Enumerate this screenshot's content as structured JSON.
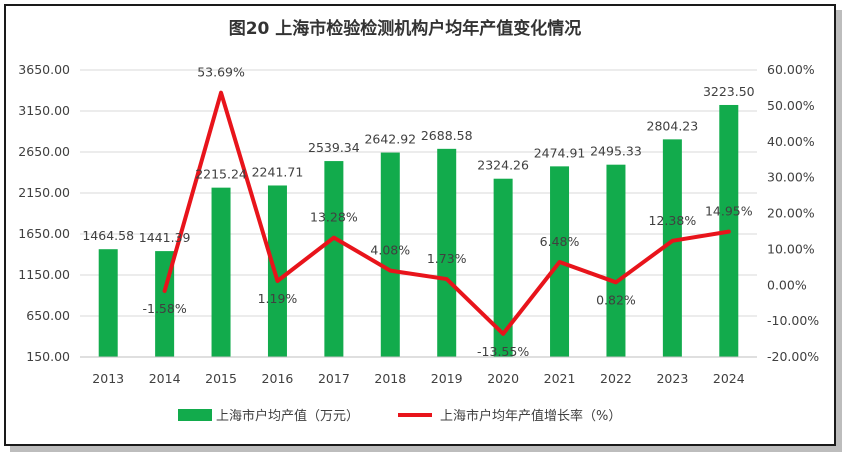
{
  "chart_data": {
    "type": "bar",
    "title": "图20  上海市检验检测机构户均年产值变化情况",
    "categories": [
      "2013",
      "2014",
      "2015",
      "2016",
      "2017",
      "2018",
      "2019",
      "2020",
      "2021",
      "2022",
      "2023",
      "2024"
    ],
    "series": [
      {
        "name": "上海市户均产值（万元）",
        "type": "bar",
        "axis": "left",
        "color": "#12ab4c",
        "values": [
          1464.58,
          1441.39,
          2215.24,
          2241.71,
          2539.34,
          2642.92,
          2688.58,
          2324.26,
          2474.91,
          2495.33,
          2804.23,
          3223.5
        ],
        "labels": [
          "1464.58",
          "1441.39",
          "2215.24",
          "2241.71",
          "2539.34",
          "2642.92",
          "2688.58",
          "2324.26",
          "2474.91",
          "2495.33",
          "2804.23",
          "3223.50"
        ]
      },
      {
        "name": "上海市户均年产值增长率（%）",
        "type": "line",
        "axis": "right",
        "color": "#e8141b",
        "values": [
          null,
          -1.58,
          53.69,
          1.19,
          13.28,
          4.08,
          1.73,
          -13.55,
          6.48,
          0.82,
          12.38,
          14.95
        ],
        "labels": [
          "",
          "-1.58%",
          "53.69%",
          "1.19%",
          "13.28%",
          "4.08%",
          "1.73%",
          "-13.55%",
          "6.48%",
          "0.82%",
          "12.38%",
          "14.95%"
        ]
      }
    ],
    "y_left": {
      "ylim": [
        150,
        3650
      ],
      "ticks": [
        "150.00",
        "650.00",
        "1150.00",
        "1650.00",
        "2150.00",
        "2650.00",
        "3150.00",
        "3650.00"
      ]
    },
    "y_right": {
      "ylim": [
        -20,
        60
      ],
      "ticks": [
        "-20.00%",
        "-10.00%",
        "0.00%",
        "10.00%",
        "20.00%",
        "30.00%",
        "40.00%",
        "50.00%",
        "60.00%"
      ]
    },
    "grid": true,
    "legend_position": "bottom",
    "legend": [
      "上海市户均产值（万元）",
      "上海市户均年产值增长率（%）"
    ]
  }
}
